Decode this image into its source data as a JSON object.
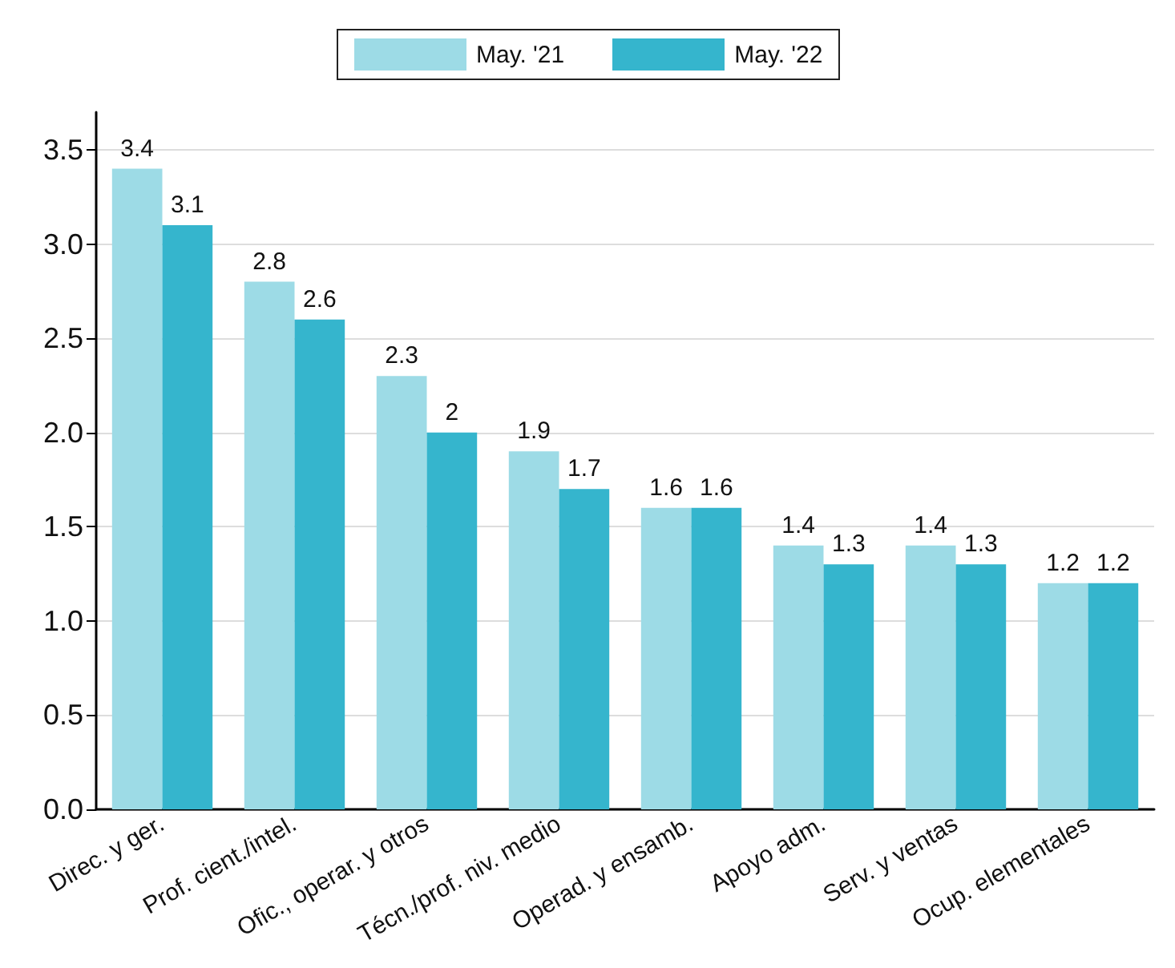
{
  "chart_data": {
    "type": "bar",
    "categories": [
      "Direc. y ger.",
      "Prof. cient./intel.",
      "Ofic., operar. y otros",
      "Técn./prof. niv. medio",
      "Operad. y ensamb.",
      "Apoyo adm.",
      "Serv. y ventas",
      "Ocup. elementales"
    ],
    "series": [
      {
        "name": "May. '21",
        "color": "#9ddbe6",
        "values": [
          3.4,
          2.8,
          2.3,
          1.9,
          1.6,
          1.4,
          1.4,
          1.2
        ]
      },
      {
        "name": "May. '22",
        "color": "#35b5cd",
        "values": [
          3.1,
          2.6,
          2,
          1.7,
          1.6,
          1.3,
          1.3,
          1.2
        ]
      }
    ],
    "ylim": [
      0,
      3.7
    ],
    "yticks": [
      {
        "value": 0,
        "label": "0.0"
      },
      0.5,
      {
        "value": 1,
        "label": "1.0"
      },
      1.5,
      {
        "value": 2,
        "label": "2.0"
      },
      2.5,
      {
        "value": 3,
        "label": "3.0"
      },
      3.5
    ],
    "grid": "y",
    "legend": "top",
    "data_labels": true
  }
}
